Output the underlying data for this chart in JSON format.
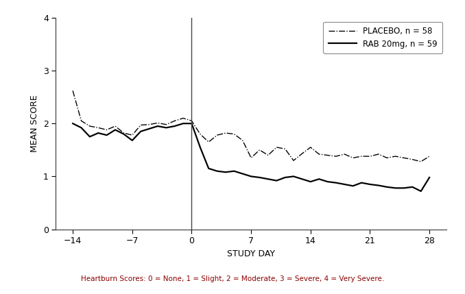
{
  "placebo_x": [
    -14,
    -13,
    -12,
    -11,
    -10,
    -9,
    -8,
    -7,
    -6,
    -5,
    -4,
    -3,
    -2,
    -1,
    0,
    1,
    2,
    3,
    4,
    5,
    6,
    7,
    8,
    9,
    10,
    11,
    12,
    13,
    14,
    15,
    16,
    17,
    18,
    19,
    20,
    21,
    22,
    23,
    24,
    25,
    26,
    27,
    28
  ],
  "placebo_y": [
    2.62,
    2.05,
    1.95,
    1.92,
    1.88,
    1.95,
    1.82,
    1.78,
    1.97,
    1.98,
    2.01,
    1.98,
    2.05,
    2.1,
    2.05,
    1.8,
    1.65,
    1.78,
    1.82,
    1.8,
    1.68,
    1.35,
    1.5,
    1.4,
    1.55,
    1.52,
    1.3,
    1.43,
    1.55,
    1.42,
    1.4,
    1.38,
    1.42,
    1.35,
    1.38,
    1.38,
    1.42,
    1.35,
    1.38,
    1.35,
    1.32,
    1.28,
    1.38
  ],
  "rab_x": [
    -14,
    -13,
    -12,
    -11,
    -10,
    -9,
    -8,
    -7,
    -6,
    -5,
    -4,
    -3,
    -2,
    -1,
    0,
    1,
    2,
    3,
    4,
    5,
    6,
    7,
    8,
    9,
    10,
    11,
    12,
    13,
    14,
    15,
    16,
    17,
    18,
    19,
    20,
    21,
    22,
    23,
    24,
    25,
    26,
    27,
    28
  ],
  "rab_y": [
    2.0,
    1.92,
    1.75,
    1.82,
    1.78,
    1.88,
    1.8,
    1.68,
    1.85,
    1.9,
    1.95,
    1.92,
    1.95,
    2.0,
    2.0,
    1.55,
    1.15,
    1.1,
    1.08,
    1.1,
    1.05,
    1.0,
    0.98,
    0.95,
    0.92,
    0.98,
    1.0,
    0.95,
    0.9,
    0.95,
    0.9,
    0.88,
    0.85,
    0.82,
    0.88,
    0.85,
    0.83,
    0.8,
    0.78,
    0.78,
    0.8,
    0.72,
    0.98
  ],
  "xlabel": "STUDY DAY",
  "ylabel": "MEAN SCORE",
  "footnote": "Heartburn Scores: 0 = None, 1 = Slight, 2 = Moderate, 3 = Severe, 4 = Very Severe.",
  "legend_placebo": "PLACEBO, n = 58",
  "legend_rab": "RAB 20mg, n = 59",
  "ylim": [
    0,
    4
  ],
  "xlim": [
    -16,
    30
  ],
  "xticks": [
    -14,
    -7,
    0,
    7,
    14,
    21,
    28
  ],
  "yticks": [
    0,
    1,
    2,
    3,
    4
  ],
  "vline_x": 0,
  "background_color": "#ffffff",
  "line_color": "#000000",
  "footnote_color": "#8B0000"
}
